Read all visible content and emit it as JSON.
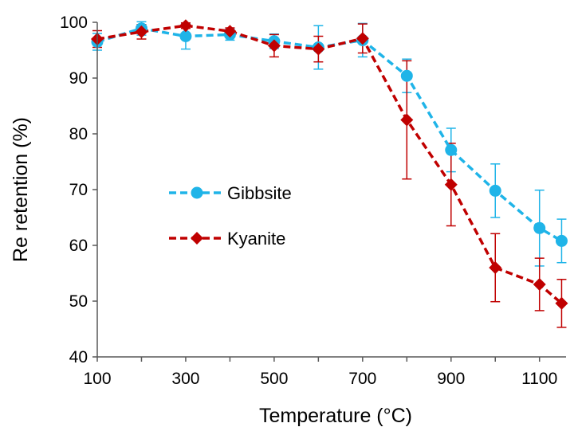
{
  "chart_data": {
    "type": "line",
    "title": "",
    "xlabel": "Temperature (°C)",
    "ylabel": "Re retention (%)",
    "xlim": [
      100,
      1160
    ],
    "ylim": [
      40,
      100
    ],
    "xticks": [
      100,
      300,
      500,
      700,
      900,
      1100
    ],
    "yticks": [
      40,
      50,
      60,
      70,
      80,
      90,
      100
    ],
    "grid": false,
    "legend_position": "center-left",
    "series": [
      {
        "name": "Gibbsite",
        "color": "#1fb4e8",
        "marker": "circle",
        "line_style": "dashed",
        "x": [
          100,
          200,
          300,
          400,
          500,
          600,
          700,
          800,
          900,
          1000,
          1100,
          1150
        ],
        "y": [
          96.5,
          98.9,
          97.5,
          97.8,
          96.6,
          95.5,
          96.8,
          90.4,
          77.1,
          69.8,
          63.1,
          60.8
        ],
        "error": [
          1.5,
          1.2,
          2.3,
          1.0,
          1.3,
          3.9,
          3.0,
          3.0,
          3.9,
          4.8,
          6.8,
          3.9
        ]
      },
      {
        "name": "Kyanite",
        "color": "#c00000",
        "marker": "diamond",
        "line_style": "dashed",
        "x": [
          100,
          200,
          300,
          400,
          500,
          600,
          700,
          800,
          900,
          1000,
          1100,
          1150
        ],
        "y": [
          97.0,
          98.3,
          99.4,
          98.4,
          95.8,
          95.2,
          97.1,
          82.5,
          70.9,
          56.0,
          53.0,
          49.6
        ],
        "error": [
          1.5,
          1.3,
          0.5,
          0.6,
          2.0,
          2.3,
          2.6,
          10.6,
          7.4,
          6.1,
          4.7,
          4.3
        ]
      }
    ]
  }
}
